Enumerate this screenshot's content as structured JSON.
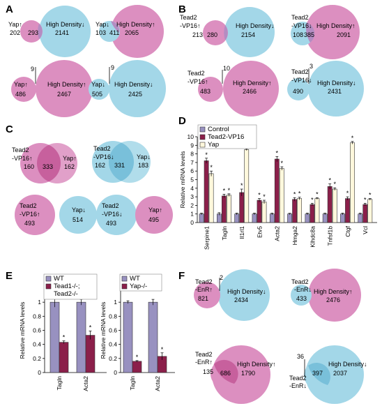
{
  "colors": {
    "pink": "#dc8fc0",
    "blue": "#a3d7e8",
    "overlap_pink_blue": "#b48cc2",
    "overlap_pink_pink": "#c7609d",
    "overlap_blue_blue": "#79c0da",
    "control": "#9891c0",
    "tead2": "#8b1f4a",
    "yap": "#fff8dc"
  },
  "panels": {
    "A": "A",
    "B": "B",
    "C": "C",
    "D": "D",
    "E": "E",
    "F": "F"
  },
  "venn": {
    "A1": {
      "left": "Yap↑",
      "right": "High Density↓",
      "n_left": "202",
      "n_ov": "293",
      "n_right": "2141"
    },
    "A2": {
      "left": "Yap↓",
      "right": "High Density↑",
      "n_left": "103",
      "n_ov": "411",
      "n_right": "2065"
    },
    "A3": {
      "left": "Yap↑",
      "right": "High Density↑",
      "n_left": "486",
      "n_ov": "9",
      "n_right": "2467"
    },
    "A4": {
      "left": "Yap↓",
      "right": "High Density↓",
      "n_left": "505",
      "n_ov": "9",
      "n_right": "2425"
    },
    "B1": {
      "left1": "Tead2",
      "left2": "-VP16↑",
      "right": "High Density↓",
      "n_left": "213",
      "n_ov": "280",
      "n_right": "2154"
    },
    "B2": {
      "left1": "Tead2",
      "left2": "-VP16↓",
      "right": "High Density↑",
      "n_left": "108",
      "n_ov": "385",
      "n_right": "2091"
    },
    "B3": {
      "left1": "Tead2",
      "left2": "-VP16↑",
      "right": "High Density↑",
      "n_left": "483",
      "n_ov": "10",
      "n_right": "2466"
    },
    "B4": {
      "left1": "Tead2",
      "left2": "-VP16↓",
      "right": "High Density↓",
      "n_left": "490",
      "n_ov": "3",
      "n_right": "2431"
    },
    "C1": {
      "left1": "Tead2",
      "left2": "-VP16↑",
      "right": "Yap↑",
      "n_left": "160",
      "n_ov": "333",
      "n_right": "162"
    },
    "C2": {
      "left1": "Tead2",
      "left2": "-VP16↓",
      "right": "Yap↓",
      "n_left": "162",
      "n_ov": "331",
      "n_right": "183"
    },
    "C3": {
      "left1": "Tead2",
      "left2": "-VP16↑",
      "right": "Yap↓",
      "n_left": "493",
      "n_right": "514"
    },
    "C4": {
      "left1": "Tead2",
      "left2": "-VP16↓",
      "right": "Yap↑",
      "n_left": "493",
      "n_right": "495"
    },
    "F1": {
      "left1": "Tead2",
      "left2": "-EnR↑",
      "right": "High Density↓",
      "n_left": "821",
      "n_ov": "2",
      "n_right": "2434"
    },
    "F2": {
      "left1": "Tead2",
      "left2": "-EnR↓",
      "right": "High Density↑",
      "n_left": "433",
      "n_right": "2476"
    },
    "F3": {
      "left1": "Tead2",
      "left2": "-EnR↑",
      "right": "High Density↑",
      "n_left": "135",
      "n_ov": "686",
      "n_right": "1790"
    },
    "F4": {
      "left1": "Tead2",
      "left2": "-EnR↓",
      "right": "High Density↓",
      "n_ov": "36",
      "n_mid": "397",
      "n_right": "2037"
    }
  },
  "chart_data": [
    {
      "type": "bar",
      "panel": "D",
      "ylabel": "Relative mRNA levels",
      "ylim": [
        0,
        10
      ],
      "yticks": [
        "0",
        "1",
        "2",
        "3",
        "4",
        "5",
        "6",
        "7",
        "8",
        "9",
        "10"
      ],
      "categories": [
        "Serpine1",
        "Tagln",
        "Il1rl1",
        "Etv5",
        "Acta2",
        "Hmga2",
        "Klhdc8a",
        "Tnfsf1b",
        "Ctgf",
        "Vcl"
      ],
      "series": [
        {
          "name": "Control",
          "values": [
            1,
            1,
            1,
            1,
            1,
            1,
            1,
            1,
            1,
            1
          ],
          "errors": [
            0.1,
            0.15,
            0.1,
            0.1,
            0.1,
            0.08,
            0.1,
            0.1,
            0.1,
            0.1
          ]
        },
        {
          "name": "Tead2-VP16",
          "values": [
            7.2,
            3.1,
            3.5,
            2.6,
            7.4,
            2.7,
            2.1,
            4.2,
            2.8,
            2.1
          ],
          "errors": [
            0.3,
            0.2,
            0.4,
            0.2,
            0.3,
            0.2,
            0.15,
            0.3,
            0.2,
            0.15
          ]
        },
        {
          "name": "Yap",
          "values": [
            5.7,
            3.2,
            8.5,
            2.4,
            6.3,
            2.8,
            2.8,
            3.9,
            9.3,
            2.7
          ],
          "errors": [
            0.3,
            0.15,
            0.1,
            0.2,
            0.2,
            0.15,
            0.1,
            0.15,
            0.15,
            0.1
          ]
        }
      ],
      "sig": "*",
      "legend": "top-left"
    },
    {
      "type": "bar",
      "panel": "E-left",
      "ylabel": "Relative mRNA levels",
      "ylim": [
        0,
        1.2
      ],
      "yticks": [
        "0",
        "0.2",
        "0.4",
        "0.6",
        "0.8",
        "1"
      ],
      "categories": [
        "Tagln",
        "Acta2"
      ],
      "series": [
        {
          "name": "WT",
          "values": [
            1,
            1
          ],
          "errors": [
            0.07,
            0.04
          ]
        },
        {
          "name": "Tead1-/-; Tead2-/-",
          "legend_lines": [
            "Tead1-/-;",
            "Tead2-/-"
          ],
          "values": [
            0.43,
            0.53
          ],
          "errors": [
            0.02,
            0.06
          ]
        }
      ],
      "sig": "*",
      "legend": "top"
    },
    {
      "type": "bar",
      "panel": "E-right",
      "ylabel": "Relative mRNA levels",
      "ylim": [
        0,
        1.2
      ],
      "yticks": [
        "0",
        "0.2",
        "0.4",
        "0.6",
        "0.8",
        "1"
      ],
      "categories": [
        "Tagln",
        "Acta2"
      ],
      "series": [
        {
          "name": "WT",
          "values": [
            1,
            1
          ],
          "errors": [
            0.02,
            0.04
          ]
        },
        {
          "name": "Yap-/-",
          "values": [
            0.16,
            0.23
          ],
          "errors": [
            0.01,
            0.05
          ]
        }
      ],
      "sig": "*",
      "legend": "top"
    }
  ]
}
